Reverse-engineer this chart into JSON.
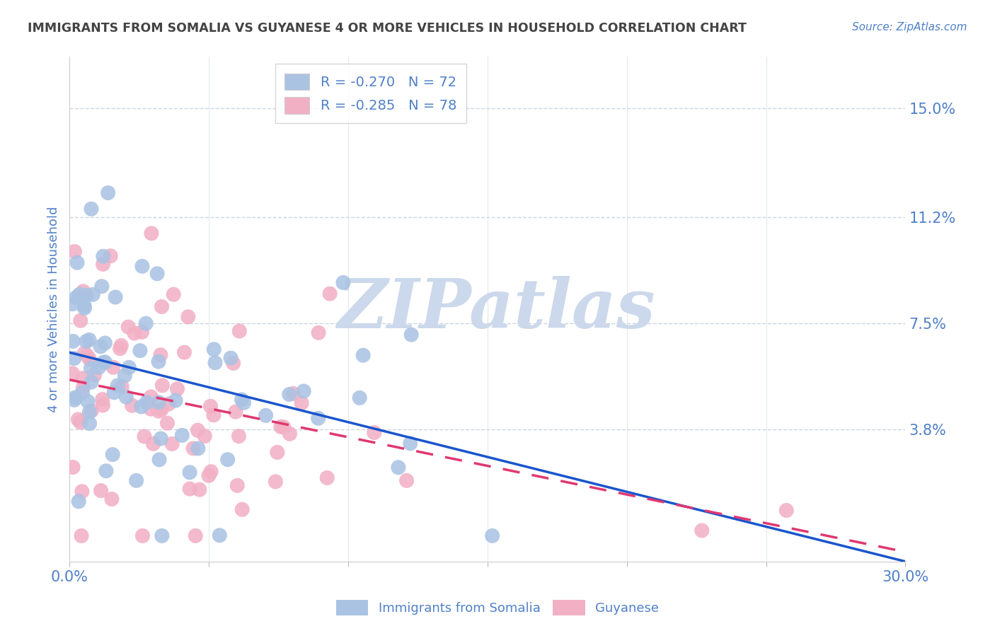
{
  "title": "IMMIGRANTS FROM SOMALIA VS GUYANESE 4 OR MORE VEHICLES IN HOUSEHOLD CORRELATION CHART",
  "source": "Source: ZipAtlas.com",
  "ylabel_label": "4 or more Vehicles in Household",
  "legend_label1": "Immigrants from Somalia",
  "legend_label2": "Guyanese",
  "R1": -0.27,
  "N1": 72,
  "R2": -0.285,
  "N2": 78,
  "xmin": 0.0,
  "xmax": 0.3,
  "ymin": -0.008,
  "ymax": 0.168,
  "yticks": [
    0.038,
    0.075,
    0.112,
    0.15
  ],
  "ytick_labels": [
    "3.8%",
    "7.5%",
    "11.2%",
    "15.0%"
  ],
  "xtick_vals": [
    0.0,
    0.05,
    0.1,
    0.15,
    0.2,
    0.25,
    0.3
  ],
  "xtick_labels": [
    "0.0%",
    "",
    "",
    "",
    "",
    "",
    "30.0%"
  ],
  "color_somalia": "#aac3e3",
  "color_guyanese": "#f2b0c5",
  "line_color_somalia": "#1a55cc",
  "line_color_guyanese": "#e03870",
  "watermark_color": "#ccd8eb",
  "title_color": "#444444",
  "axis_label_color": "#5080c8",
  "tick_label_color": "#5080c8",
  "background_color": "#ffffff",
  "grid_color": "#cbd5e2",
  "seed1": 42,
  "seed2": 137
}
